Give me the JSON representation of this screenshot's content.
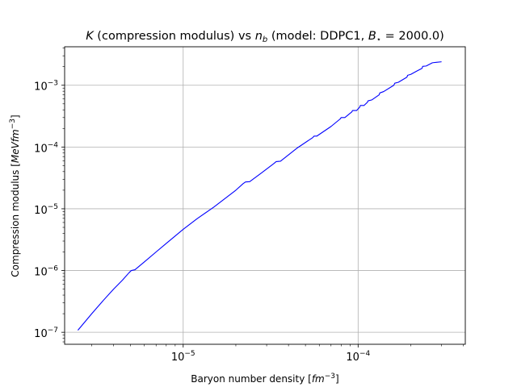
{
  "chart_data": {
    "type": "line",
    "title": "K (compression modulus) vs n_b (model: DDPC1, B_⋆ = 2000.0)",
    "title_parts": {
      "k_symbol": "K",
      "part1": " (compression modulus) vs ",
      "n_symbol": "n",
      "n_sub": "b",
      "part2": " (model: DDPC1, ",
      "b_symbol": "B",
      "b_sub": "⋆",
      "part3": " = 2000.0)"
    },
    "xlabel": "Baryon number density [fm⁻³]",
    "xlabel_parts": {
      "text": "Baryon number density [",
      "unit": "fm",
      "exp": "−3",
      "close": "]"
    },
    "ylabel": "Compression modulus [MeV fm⁻³]",
    "ylabel_parts": {
      "text": "Compression modulus [",
      "unit": "MeVfm",
      "exp": "−3",
      "close": "]"
    },
    "xscale": "log",
    "yscale": "log",
    "xlim": [
      2.1e-06,
      0.00041
    ],
    "ylim": [
      6.4e-08,
      0.0042
    ],
    "x_ticks": [
      {
        "value": 1e-05,
        "base": "10",
        "exp": "−5"
      },
      {
        "value": 0.0001,
        "base": "10",
        "exp": "−4"
      }
    ],
    "y_ticks": [
      {
        "value": 1e-07,
        "base": "10",
        "exp": "−7"
      },
      {
        "value": 1e-06,
        "base": "10",
        "exp": "−6"
      },
      {
        "value": 1e-05,
        "base": "10",
        "exp": "−5"
      },
      {
        "value": 0.0001,
        "base": "10",
        "exp": "−4"
      },
      {
        "value": 0.001,
        "base": "10",
        "exp": "−3"
      }
    ],
    "grid": true,
    "line_color": "#0000ff",
    "series": [
      {
        "x": [
          2.5e-06,
          3e-06,
          3.5e-06,
          4e-06,
          4.5e-06,
          4.9e-06,
          5.05e-06,
          5.3e-06,
          6e-06,
          7e-06,
          8e-06,
          1e-05,
          1.2e-05,
          1.5e-05,
          2e-05,
          2.2e-05,
          2.27e-05,
          2.4e-05,
          2.8e-05,
          3.3e-05,
          3.4e-05,
          3.6e-05,
          4.5e-05,
          5.5e-05,
          5.6e-05,
          5.8e-05,
          7e-05,
          7.9e-05,
          8e-05,
          8.4e-05,
          9.2e-05,
          9.3e-05,
          9.8e-05,
          0.000102,
          0.000103,
          0.000108,
          0.000113,
          0.000114,
          0.00012,
          0.000132,
          0.000133,
          0.00014,
          0.00016,
          0.000162,
          0.00017,
          0.00019,
          0.000192,
          0.0002,
          0.000215,
          0.000232,
          0.000234,
          0.000245,
          0.000265,
          0.000268,
          0.00028,
          0.0003
        ],
        "values": [
          1.08e-07,
          2e-07,
          3.3e-07,
          5e-07,
          7e-07,
          9.2e-07,
          1e-06,
          1.03e-06,
          1.38e-06,
          2e-06,
          2.75e-06,
          4.65e-06,
          6.9e-06,
          1.07e-05,
          2e-05,
          2.55e-05,
          2.72e-05,
          2.75e-05,
          3.8e-05,
          5.4e-05,
          5.8e-05,
          5.9e-05,
          9.7e-05,
          0.000142,
          0.00015,
          0.00015,
          0.000215,
          0.000285,
          0.0003,
          0.0003,
          0.00037,
          0.00039,
          0.00039,
          0.00044,
          0.00047,
          0.00047,
          0.00053,
          0.00056,
          0.00058,
          0.0007,
          0.00075,
          0.00079,
          0.001,
          0.00108,
          0.00112,
          0.00135,
          0.00145,
          0.0015,
          0.00168,
          0.00188,
          0.00202,
          0.00205,
          0.0023,
          0.00232,
          0.00235,
          0.0024
        ]
      }
    ]
  }
}
